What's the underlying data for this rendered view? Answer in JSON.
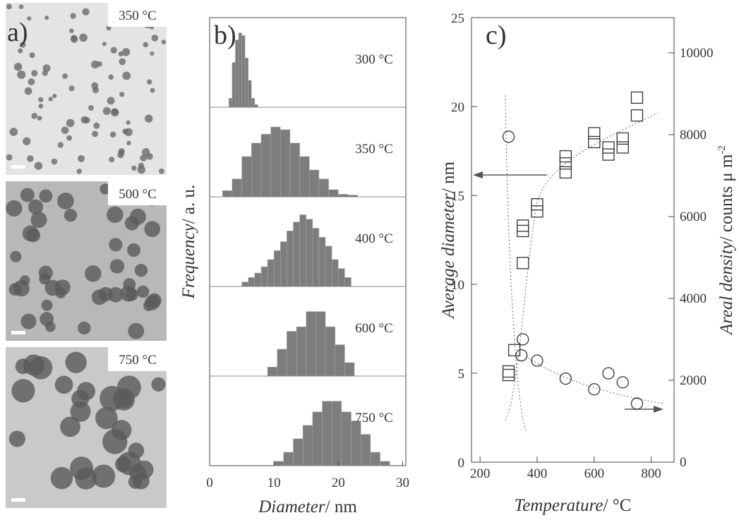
{
  "panel_a": {
    "label": "a)",
    "images": [
      {
        "label": "350 °C"
      },
      {
        "label": "500 °C"
      },
      {
        "label": "750 °C"
      }
    ]
  },
  "chart_data": [
    {
      "type": "histogram",
      "label": "b)",
      "x_label": {
        "italic": "Diameter",
        "rest": "/ nm"
      },
      "y_label": {
        "italic": "Frequency",
        "rest": "/ a. u."
      },
      "xlim": [
        0,
        30.5
      ],
      "xticks": [
        0,
        10,
        20,
        30
      ],
      "ylim": [
        0,
        1
      ],
      "color": "#7d7d7d",
      "series": [
        {
          "name": "300 °C",
          "bins": [
            3,
            3.5,
            4,
            4.5,
            5,
            5.5,
            6,
            6.5,
            7,
            7.5
          ],
          "values": [
            0.1,
            0.5,
            0.75,
            0.83,
            0.8,
            0.55,
            0.3,
            0.1,
            0.03
          ]
        },
        {
          "name": "350 °C",
          "bins": [
            2,
            3.5,
            5,
            6.5,
            8,
            9.5,
            11,
            12.5,
            14,
            15.5,
            17,
            18.5,
            20,
            21.5,
            23
          ],
          "values": [
            0.07,
            0.2,
            0.45,
            0.6,
            0.7,
            0.78,
            0.75,
            0.6,
            0.45,
            0.3,
            0.2,
            0.08,
            0.03,
            0.02
          ]
        },
        {
          "name": "400 °C",
          "bins": [
            5,
            6,
            7,
            8,
            9,
            10,
            11,
            12,
            13,
            14,
            15,
            16,
            17,
            18,
            19,
            20,
            21,
            22
          ],
          "values": [
            0.05,
            0.1,
            0.15,
            0.22,
            0.3,
            0.4,
            0.5,
            0.62,
            0.72,
            0.8,
            0.75,
            0.65,
            0.55,
            0.45,
            0.3,
            0.2,
            0.1
          ]
        },
        {
          "name": "600 °C",
          "bins": [
            9,
            10.5,
            12,
            13.5,
            15,
            16.5,
            18,
            19.5,
            21,
            22.5
          ],
          "values": [
            0.1,
            0.3,
            0.5,
            0.55,
            0.72,
            0.72,
            0.55,
            0.35,
            0.15
          ]
        },
        {
          "name": "750 °C",
          "bins": [
            10,
            11.5,
            13,
            14.5,
            16,
            17.5,
            19,
            20.5,
            22,
            23.5,
            25,
            26.5,
            28
          ],
          "values": [
            0.05,
            0.15,
            0.3,
            0.45,
            0.6,
            0.72,
            0.72,
            0.6,
            0.5,
            0.35,
            0.15,
            0.05
          ]
        }
      ]
    },
    {
      "type": "scatter",
      "label": "c)",
      "x_label": {
        "italic": "Temperature",
        "rest": "/ °C"
      },
      "y_label": {
        "italic": "Average diameter",
        "rest": "/ nm"
      },
      "y2_label": {
        "italic": "Areal density",
        "rest": "/ counts μ m",
        "sup": "-2"
      },
      "xlim": [
        170,
        880
      ],
      "xticks": [
        200,
        400,
        600,
        800
      ],
      "ylim": [
        0,
        25
      ],
      "yticks": [
        0,
        5,
        10,
        15,
        20,
        25
      ],
      "y2lim": [
        0,
        10860
      ],
      "y2ticks": [
        0,
        2000,
        4000,
        6000,
        8000,
        10000
      ],
      "color": "#333333",
      "series": [
        {
          "marker": "square",
          "x": [
            300,
            300,
            320,
            350,
            350,
            350,
            400,
            400,
            500,
            500,
            500,
            600,
            600,
            650,
            650,
            700,
            700,
            750,
            750
          ],
          "values": [
            5.1,
            4.9,
            6.3,
            13.3,
            13.0,
            11.2,
            14.5,
            14.1,
            17.2,
            16.8,
            16.3,
            18.5,
            18.0,
            17.7,
            17.3,
            18.2,
            17.7,
            20.5,
            19.5
          ]
        },
        {
          "marker": "circle",
          "axis": "y2",
          "x": [
            300,
            350,
            345,
            400,
            500,
            600,
            650,
            700,
            750
          ],
          "values": [
            7950,
            3000,
            2610,
            2480,
            2040,
            1780,
            2170,
            1950,
            1430
          ]
        }
      ]
    }
  ]
}
